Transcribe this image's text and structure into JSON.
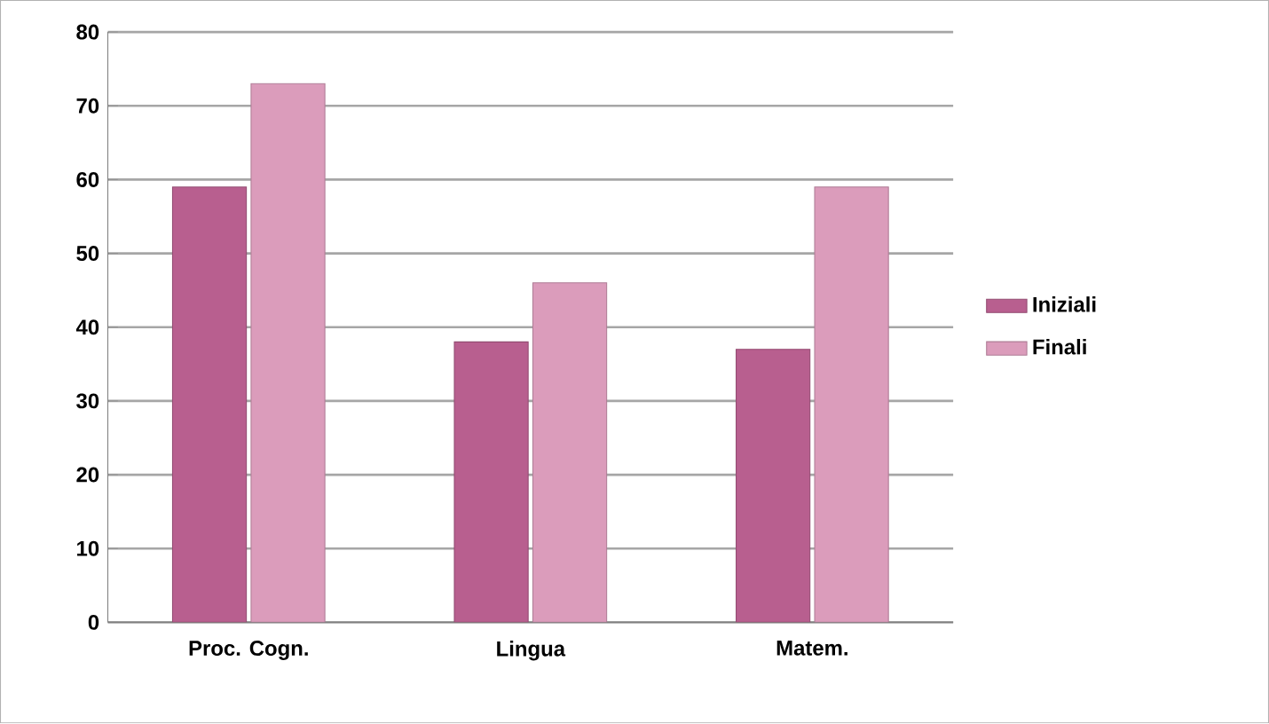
{
  "chart_data": {
    "type": "bar",
    "categories": [
      "Proc. Cogn.",
      "Lingua",
      "Matem."
    ],
    "series": [
      {
        "name": "Iniziali",
        "color": "#b85f8f",
        "values": [
          59,
          38,
          37
        ]
      },
      {
        "name": "Finali",
        "color": "#db9cbb",
        "values": [
          73,
          46,
          59
        ]
      }
    ],
    "ylim": [
      0,
      80
    ],
    "yticks": [
      0,
      10,
      20,
      30,
      40,
      50,
      60,
      70,
      80
    ],
    "grid": "y",
    "legend": "right"
  }
}
